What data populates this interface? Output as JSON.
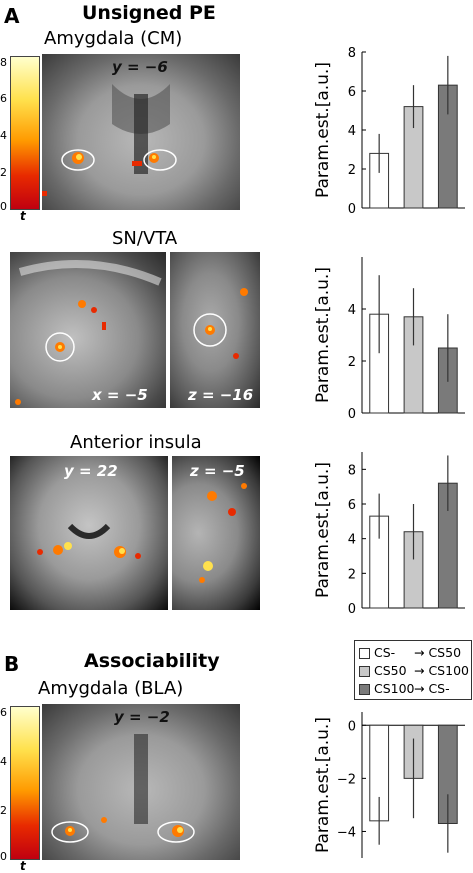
{
  "panels": {
    "a": {
      "letter": "A",
      "title": "Unsigned PE"
    },
    "b": {
      "letter": "B",
      "title": "Associability"
    }
  },
  "regions": {
    "amygdala_cm": {
      "title": "Amygdala (CM)",
      "coord1": "y = −6"
    },
    "sn_vta": {
      "title": "SN/VTA",
      "coord1": "x = −5",
      "coord2": "z = −16"
    },
    "anterior_insula": {
      "title": "Anterior insula",
      "coord1": "y = 22",
      "coord2": "z = −5"
    },
    "amygdala_bla": {
      "title": "Amygdala (BLA)",
      "coord1": "y = −2"
    }
  },
  "colorbar": {
    "label": "t",
    "ticks_a": [
      "8",
      "6",
      "4",
      "2",
      "0"
    ],
    "ticks_b": [
      "6",
      "4",
      "2",
      "0"
    ],
    "colors": [
      "#ffffcc",
      "#ffe14d",
      "#ff9a00",
      "#e82a00",
      "#c00010"
    ]
  },
  "legend": {
    "items": [
      {
        "from": "CS-",
        "to": "CS50",
        "color": "#ffffff"
      },
      {
        "from": "CS50",
        "to": "CS100",
        "color": "#c8c8c8"
      },
      {
        "from": "CS100",
        "to": "CS-",
        "color": "#7a7a7a"
      }
    ],
    "arrow": "→"
  },
  "chart_data": [
    {
      "type": "bar",
      "region": "Amygdala (CM)",
      "categories": [
        "CS- → CS50",
        "CS50 → CS100",
        "CS100 → CS-"
      ],
      "values": [
        2.8,
        5.2,
        6.3
      ],
      "error_low": [
        1.8,
        4.1,
        4.8
      ],
      "error_high": [
        3.8,
        6.3,
        7.8
      ],
      "ylabel": "Param.est.[a.u.]",
      "ylim": [
        0,
        8
      ],
      "yticks": [
        "0",
        "2",
        "4",
        "6",
        "8"
      ]
    },
    {
      "type": "bar",
      "region": "SN/VTA",
      "categories": [
        "CS- → CS50",
        "CS50 → CS100",
        "CS100 → CS-"
      ],
      "values": [
        3.8,
        3.7,
        2.5
      ],
      "error_low": [
        2.3,
        2.6,
        1.2
      ],
      "error_high": [
        5.3,
        4.8,
        3.8
      ],
      "ylabel": "Param.est.[a.u.]",
      "ylim": [
        0,
        6
      ],
      "yticks": [
        "0",
        "2",
        "4"
      ]
    },
    {
      "type": "bar",
      "region": "Anterior insula",
      "categories": [
        "CS- → CS50",
        "CS50 → CS100",
        "CS100 → CS-"
      ],
      "values": [
        5.3,
        4.4,
        7.2
      ],
      "error_low": [
        4.0,
        2.8,
        5.6
      ],
      "error_high": [
        6.6,
        6.0,
        8.8
      ],
      "ylabel": "Param.est.[a.u.]",
      "ylim": [
        0,
        9
      ],
      "yticks": [
        "0",
        "2",
        "4",
        "6",
        "8"
      ]
    },
    {
      "type": "bar",
      "region": "Amygdala (BLA)",
      "categories": [
        "CS- → CS50",
        "CS50 → CS100",
        "CS100 → CS-"
      ],
      "values": [
        -3.6,
        -2.0,
        -3.7
      ],
      "error_low": [
        -4.5,
        -3.5,
        -4.8
      ],
      "error_high": [
        -2.7,
        -0.5,
        -2.6
      ],
      "ylabel": "Param.est.[a.u.]",
      "ylim": [
        -5,
        0.5
      ],
      "yticks": [
        "0",
        "−2",
        "−4"
      ]
    }
  ]
}
